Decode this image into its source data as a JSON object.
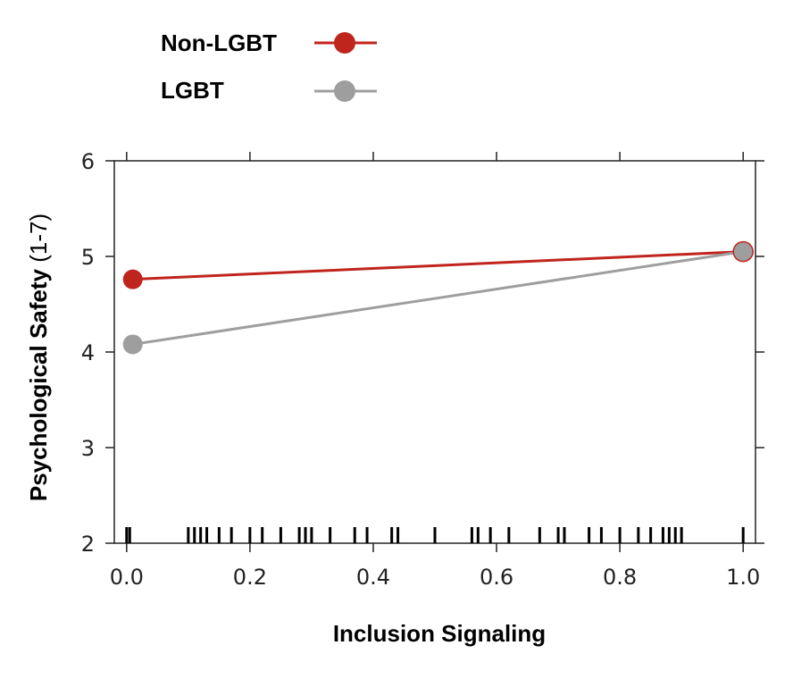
{
  "chart_data": {
    "type": "line",
    "xlabel": "Inclusion Signaling",
    "ylabel": "Psychological Safety",
    "ylabel_unit": "(1-7)",
    "xlim": [
      -0.02,
      1.02
    ],
    "ylim": [
      2,
      6
    ],
    "x_ticks": [
      "0.0",
      "0.2",
      "0.4",
      "0.6",
      "0.8",
      "1.0"
    ],
    "x_tick_values": [
      0,
      0.2,
      0.4,
      0.6,
      0.8,
      1.0
    ],
    "y_ticks": [
      "2",
      "3",
      "4",
      "5",
      "6"
    ],
    "y_tick_values": [
      2,
      3,
      4,
      5,
      6
    ],
    "grid": false,
    "legend_position": "top-left",
    "series": [
      {
        "name": "Non-LGBT",
        "color": "#c0251d",
        "x": [
          0.01,
          1.0
        ],
        "y": [
          4.76,
          5.05
        ]
      },
      {
        "name": "LGBT",
        "color": "#9e9e9e",
        "x": [
          0.01,
          1.0
        ],
        "y": [
          4.08,
          5.05
        ]
      }
    ],
    "rug_x": [
      0.0,
      0.005,
      0.1,
      0.11,
      0.12,
      0.13,
      0.15,
      0.17,
      0.2,
      0.22,
      0.25,
      0.28,
      0.29,
      0.3,
      0.33,
      0.37,
      0.39,
      0.43,
      0.44,
      0.5,
      0.56,
      0.57,
      0.59,
      0.62,
      0.67,
      0.7,
      0.71,
      0.75,
      0.77,
      0.8,
      0.83,
      0.85,
      0.87,
      0.88,
      0.89,
      0.9,
      1.0
    ]
  }
}
